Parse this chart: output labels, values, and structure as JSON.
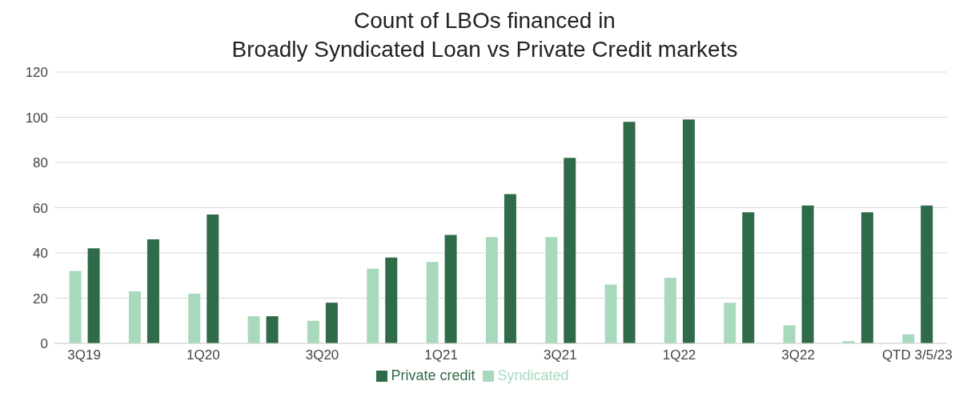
{
  "chart_data": {
    "type": "bar",
    "title": "Count of LBOs financed in\nBroadly Syndicated Loan vs Private Credit markets",
    "categories": [
      "3Q19",
      null,
      "1Q20",
      null,
      "3Q20",
      null,
      "1Q21",
      null,
      "3Q21",
      null,
      "1Q22",
      null,
      "3Q22",
      null,
      "QTD 3/5/23"
    ],
    "series": [
      {
        "name": "Syndicated",
        "color": "#a9d9bd",
        "values": [
          32,
          23,
          22,
          12,
          10,
          33,
          36,
          47,
          47,
          26,
          29,
          18,
          8,
          1,
          4
        ]
      },
      {
        "name": "Private credit",
        "color": "#2f6b48",
        "values": [
          42,
          46,
          57,
          12,
          18,
          38,
          48,
          66,
          82,
          98,
          99,
          58,
          61,
          58,
          61
        ]
      }
    ],
    "ylim": [
      0,
      120
    ],
    "yticks": [
      0,
      20,
      40,
      60,
      80,
      100,
      120
    ],
    "grid": "y",
    "legend": "bottom"
  }
}
